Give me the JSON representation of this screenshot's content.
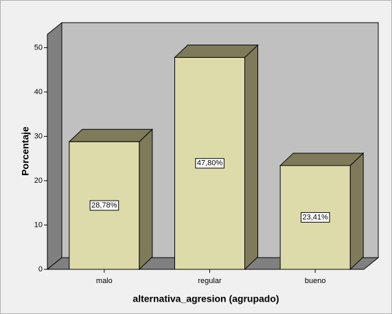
{
  "chart_data": {
    "type": "bar3d",
    "x_label": "alternativa_agresion (agrupado)",
    "y_label": "Porcentaje",
    "categories": [
      "malo",
      "regular",
      "bueno"
    ],
    "values": [
      28.78,
      47.8,
      23.41
    ],
    "value_labels": [
      "28,78%",
      "47,80%",
      "23,41%"
    ],
    "color": "#dedbaa",
    "ylim": [
      0,
      53
    ],
    "yticks": [
      0,
      10,
      20,
      30,
      40,
      50
    ],
    "grid": false
  }
}
